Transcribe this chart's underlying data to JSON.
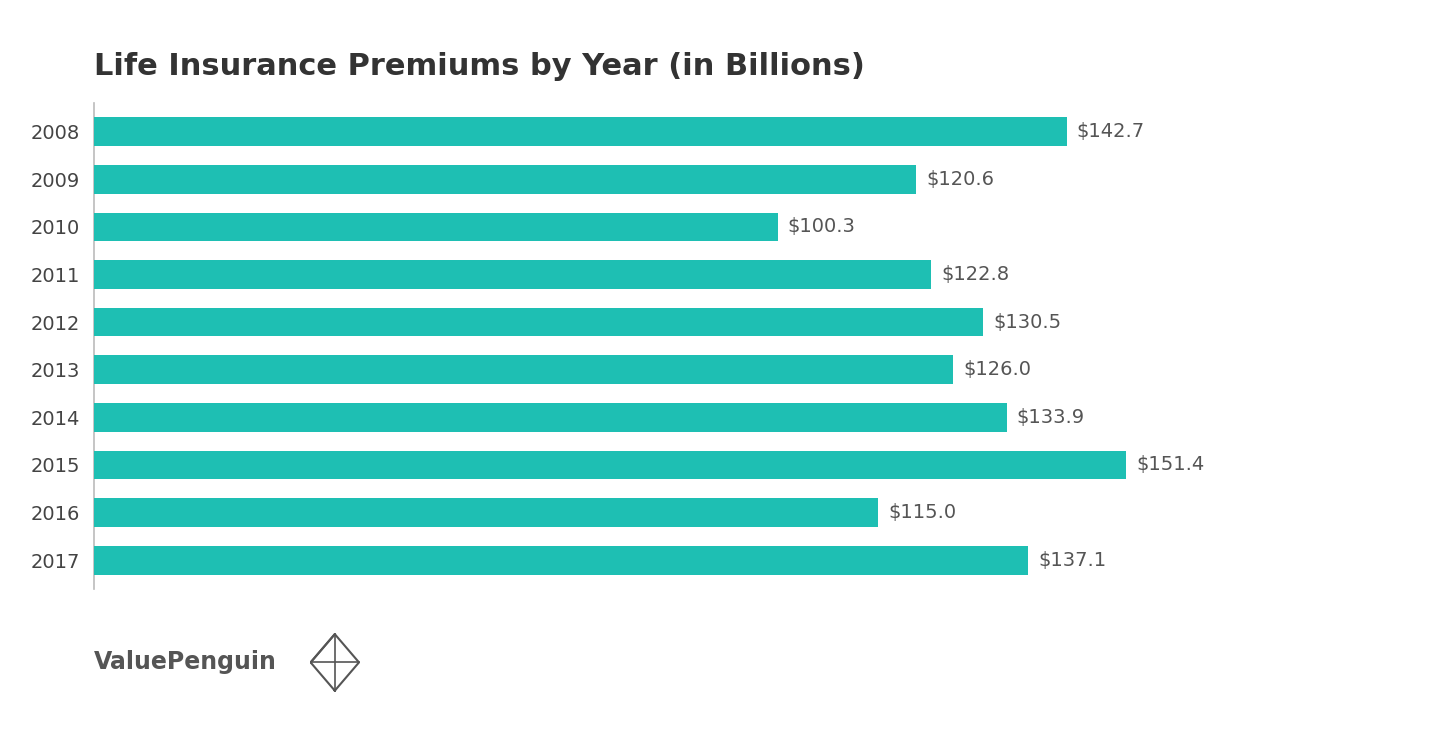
{
  "title": "Life Insurance Premiums by Year (in Billions)",
  "years": [
    "2008",
    "2009",
    "2010",
    "2011",
    "2012",
    "2013",
    "2014",
    "2015",
    "2016",
    "2017"
  ],
  "values": [
    142.7,
    120.6,
    100.3,
    122.8,
    130.5,
    126.0,
    133.9,
    151.4,
    115.0,
    137.1
  ],
  "labels": [
    "$142.7",
    "$120.6",
    "$100.3",
    "$122.8",
    "$130.5",
    "$126.0",
    "$133.9",
    "$151.4",
    "$115.0",
    "$137.1"
  ],
  "bar_color": "#1EBFB3",
  "background_color": "#ffffff",
  "title_fontsize": 22,
  "label_fontsize": 14,
  "tick_fontsize": 14,
  "watermark_text": "ValuePenguin",
  "xlim": [
    0,
    170
  ],
  "bar_height": 0.6
}
